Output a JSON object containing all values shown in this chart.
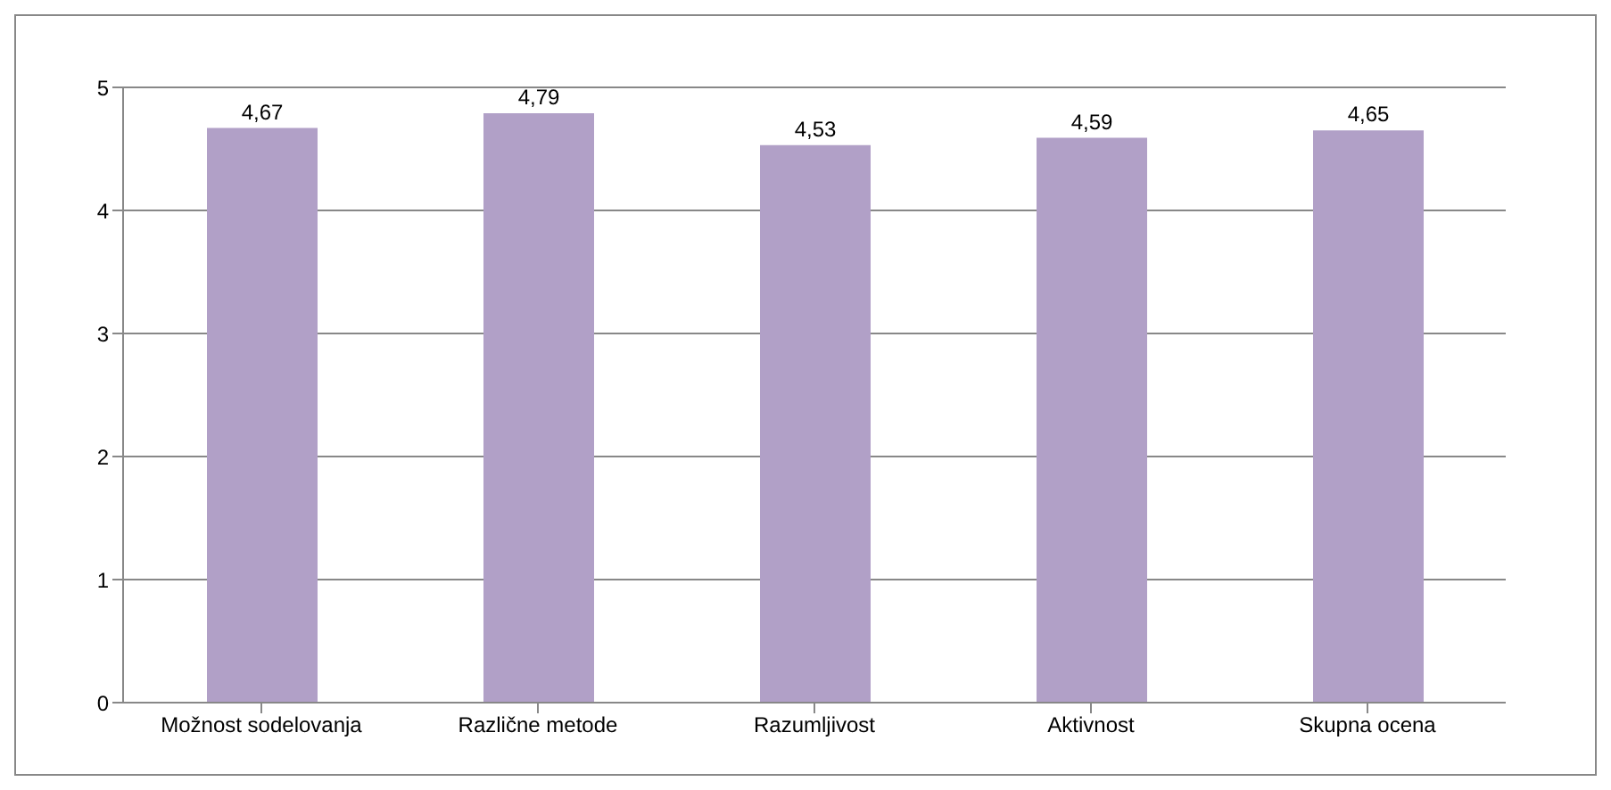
{
  "chart_data": {
    "type": "bar",
    "categories": [
      "Možnost sodelovanja",
      "Različne metode",
      "Razumljivost",
      "Aktivnost",
      "Skupna ocena"
    ],
    "values": [
      4.67,
      4.79,
      4.53,
      4.59,
      4.65
    ],
    "value_labels": [
      "4,67",
      "4,79",
      "4,53",
      "4,59",
      "4,65"
    ],
    "color": "#b1a0c7",
    "ylim": [
      0,
      5
    ],
    "yticks": [
      0,
      1,
      2,
      3,
      4,
      5
    ],
    "grid": "y"
  }
}
